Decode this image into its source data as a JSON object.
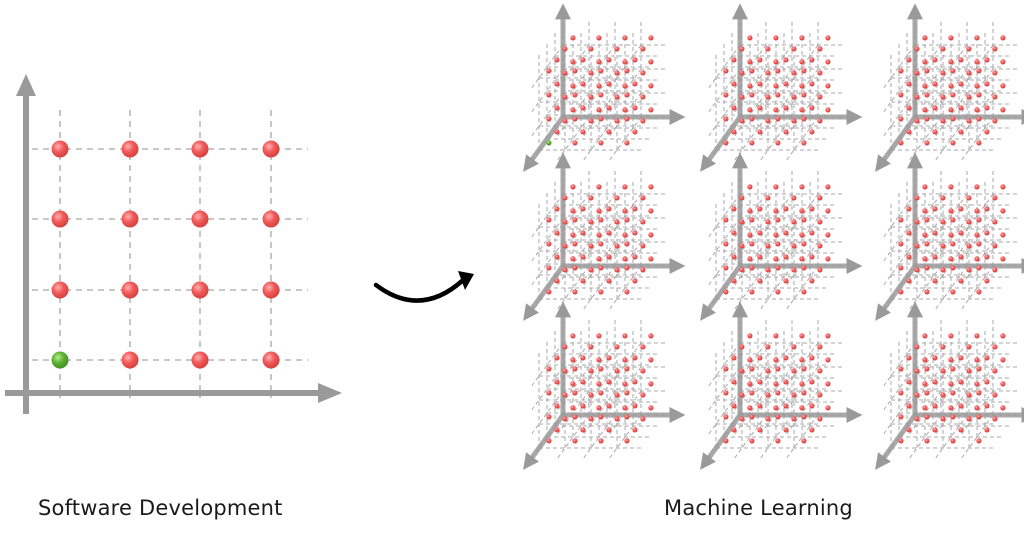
{
  "left_panel": {
    "caption": "Software Development",
    "grid": {
      "rows": 4,
      "cols": 4,
      "highlight": {
        "row": 0,
        "col": 0
      }
    }
  },
  "right_panel": {
    "caption": "Machine Learning",
    "cubes": {
      "rows": 3,
      "cols": 3,
      "points_per_axis": 4,
      "highlight_cube": 0
    }
  },
  "transition": {
    "icon": "curved-arrow-icon"
  },
  "colors": {
    "point": "#f05a5a",
    "highlight": "#4fa52c",
    "axis": "#9a9a9a",
    "grid_line": "#a8a8a8",
    "arrow": "#000000"
  }
}
